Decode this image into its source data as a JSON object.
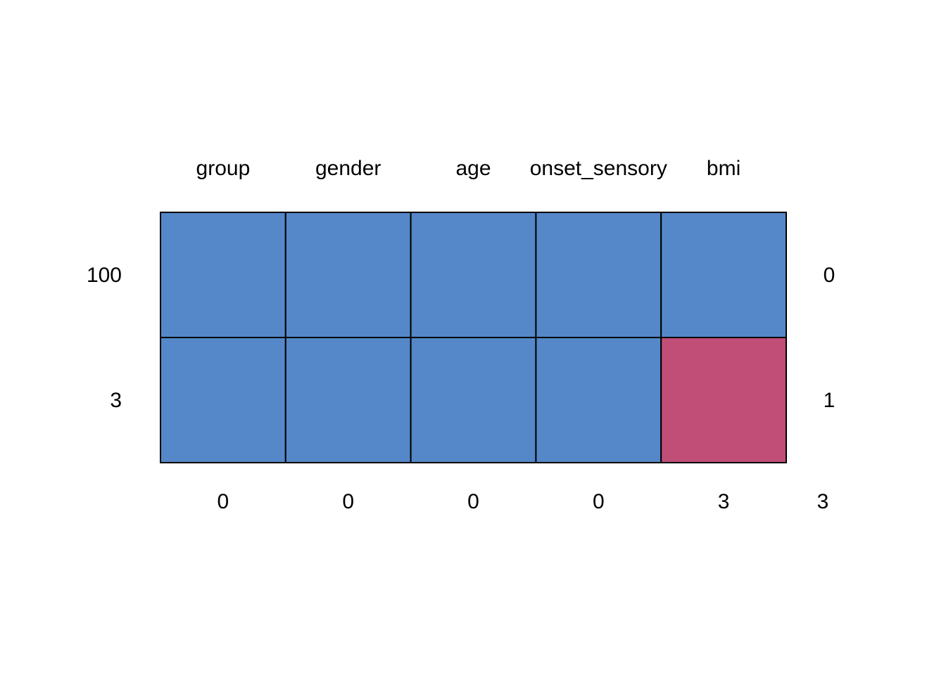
{
  "chart_data": {
    "type": "heatmap",
    "variables": [
      "group",
      "gender",
      "age",
      "onset_sensory",
      "bmi"
    ],
    "patterns": [
      {
        "count": "100",
        "cells": [
          1,
          1,
          1,
          1,
          1
        ],
        "n_missing": "0"
      },
      {
        "count": "3",
        "cells": [
          1,
          1,
          1,
          1,
          0
        ],
        "n_missing": "1"
      }
    ],
    "column_missing_totals": [
      "0",
      "0",
      "0",
      "0",
      "3"
    ],
    "total_missing": "3",
    "colors": {
      "observed": "#5488C8",
      "missing": "#C04E77",
      "border": "#000000"
    }
  }
}
